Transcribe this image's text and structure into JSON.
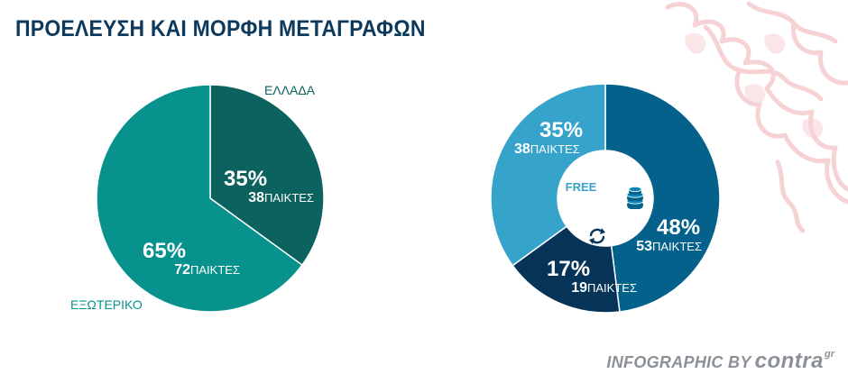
{
  "title": "ΠΡΟΕΛΕΥΣΗ ΚΑΙ ΜΟΡΦΗ ΜΕΤΑΓΡΑΦΩΝ",
  "credit": {
    "prefix": "INFOGRAPHIC BY",
    "brand": "contra",
    "suffix": "gr"
  },
  "chart_data": [
    {
      "type": "pie",
      "slices": [
        {
          "label": "ΕΛΛΑΔΑ",
          "percent": 35,
          "percent_label": "35%",
          "count": "38",
          "unit": "ΠΑΙΚΤΕΣ",
          "color": "#0b625e"
        },
        {
          "label": "ΕΞΩΤΕΡΙΚΟ",
          "percent": 65,
          "percent_label": "65%",
          "count": "72",
          "unit": "ΠΑΙΚΤΕΣ",
          "color": "#07928d"
        }
      ]
    },
    {
      "type": "pie",
      "variant": "donut",
      "center_label": "FREE",
      "slices": [
        {
          "label": "",
          "icon": "coins-icon",
          "percent": 48,
          "percent_label": "48%",
          "count": "53",
          "unit": "ΠΑΙΚΤΕΣ",
          "color": "#04618b"
        },
        {
          "label": "",
          "icon": "swap-arrows-icon",
          "percent": 17,
          "percent_label": "17%",
          "count": "19",
          "unit": "ΠΑΙΚΤΕΣ",
          "color": "#053458"
        },
        {
          "label": "",
          "icon": "",
          "percent": 35,
          "percent_label": "35%",
          "count": "38",
          "unit": "ΠΑΙΚΤΕΣ",
          "color": "#36a3cb"
        }
      ]
    }
  ],
  "colors": {
    "title": "#0d3a5c",
    "inner_text": "#ffffff",
    "credit": "#8b9197",
    "decor": "#f6d2d4"
  }
}
